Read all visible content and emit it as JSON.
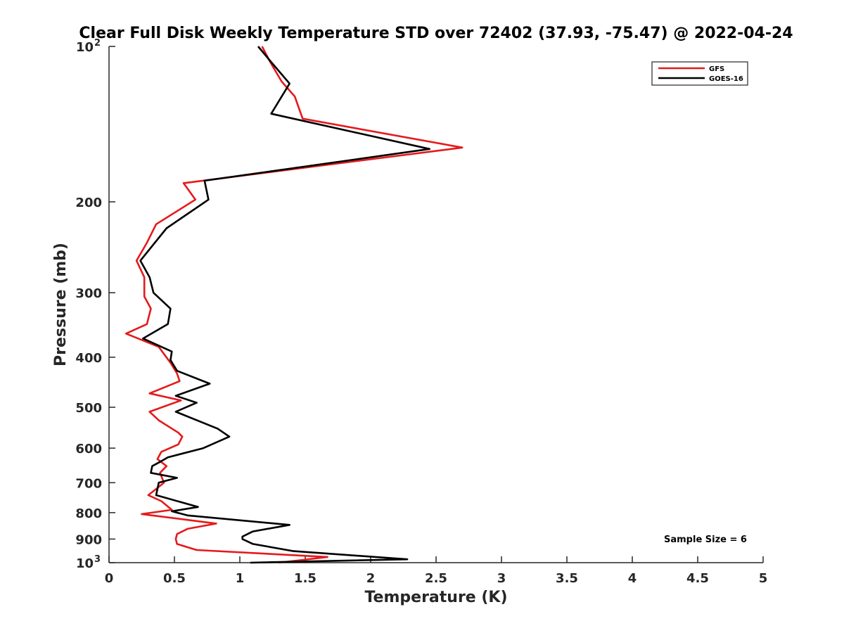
{
  "chart_data": {
    "type": "line",
    "title": "Clear Full Disk Weekly Temperature STD over 72402 (37.93, -75.47) @ 2022-04-24",
    "xlabel": "Temperature (K)",
    "ylabel": "Pressure (mb)",
    "xlim": [
      0,
      5
    ],
    "ylim": [
      100,
      1000
    ],
    "y_scale": "log",
    "y_reversed": true,
    "grid": false,
    "legend_position": "top-right",
    "x_ticks": [
      0,
      0.5,
      1,
      1.5,
      2,
      2.5,
      3,
      3.5,
      4,
      4.5,
      5
    ],
    "x_tick_labels": [
      "0",
      "0.5",
      "1",
      "1.5",
      "2",
      "2.5",
      "3",
      "3.5",
      "4",
      "4.5",
      "5"
    ],
    "y_ticks": [
      {
        "value": 100,
        "base": "10",
        "exp": "2",
        "label": ""
      },
      {
        "value": 200,
        "base": "",
        "exp": "",
        "label": "200"
      },
      {
        "value": 300,
        "base": "",
        "exp": "",
        "label": "300"
      },
      {
        "value": 400,
        "base": "",
        "exp": "",
        "label": "400"
      },
      {
        "value": 500,
        "base": "",
        "exp": "",
        "label": "500"
      },
      {
        "value": 600,
        "base": "",
        "exp": "",
        "label": "600"
      },
      {
        "value": 700,
        "base": "",
        "exp": "",
        "label": "700"
      },
      {
        "value": 800,
        "base": "",
        "exp": "",
        "label": "800"
      },
      {
        "value": 900,
        "base": "",
        "exp": "",
        "label": "900"
      },
      {
        "value": 1000,
        "base": "10",
        "exp": "3",
        "label": ""
      }
    ],
    "annotation": "Sample Size = 6",
    "series": [
      {
        "name": "GFS",
        "color": "#e41a1c",
        "points": [
          [
            1.17,
            100
          ],
          [
            1.23,
            107
          ],
          [
            1.32,
            117
          ],
          [
            1.42,
            125
          ],
          [
            1.48,
            138
          ],
          [
            2.7,
            157
          ],
          [
            0.57,
            184
          ],
          [
            0.66,
            198
          ],
          [
            0.36,
            221
          ],
          [
            0.29,
            240
          ],
          [
            0.21,
            260
          ],
          [
            0.27,
            280
          ],
          [
            0.27,
            305
          ],
          [
            0.32,
            322
          ],
          [
            0.29,
            345
          ],
          [
            0.13,
            360
          ],
          [
            0.38,
            382
          ],
          [
            0.47,
            410
          ],
          [
            0.52,
            430
          ],
          [
            0.54,
            445
          ],
          [
            0.31,
            470
          ],
          [
            0.55,
            485
          ],
          [
            0.31,
            510
          ],
          [
            0.38,
            530
          ],
          [
            0.53,
            560
          ],
          [
            0.56,
            570
          ],
          [
            0.53,
            590
          ],
          [
            0.4,
            610
          ],
          [
            0.37,
            630
          ],
          [
            0.44,
            650
          ],
          [
            0.39,
            670
          ],
          [
            0.42,
            700
          ],
          [
            0.36,
            720
          ],
          [
            0.3,
            740
          ],
          [
            0.4,
            760
          ],
          [
            0.48,
            790
          ],
          [
            0.25,
            805
          ],
          [
            0.82,
            840
          ],
          [
            0.6,
            860
          ],
          [
            0.52,
            880
          ],
          [
            0.51,
            900
          ],
          [
            0.52,
            920
          ],
          [
            0.67,
            945
          ],
          [
            1.67,
            975
          ],
          [
            1.3,
            1000
          ]
        ]
      },
      {
        "name": "GOES-16",
        "color": "#000000",
        "points": [
          [
            1.14,
            100
          ],
          [
            1.25,
            108
          ],
          [
            1.38,
            118
          ],
          [
            1.24,
            135
          ],
          [
            2.45,
            158
          ],
          [
            0.73,
            182
          ],
          [
            0.76,
            198
          ],
          [
            0.44,
            225
          ],
          [
            0.24,
            260
          ],
          [
            0.31,
            280
          ],
          [
            0.34,
            300
          ],
          [
            0.47,
            322
          ],
          [
            0.45,
            345
          ],
          [
            0.26,
            368
          ],
          [
            0.48,
            390
          ],
          [
            0.47,
            405
          ],
          [
            0.52,
            425
          ],
          [
            0.77,
            450
          ],
          [
            0.51,
            475
          ],
          [
            0.67,
            490
          ],
          [
            0.51,
            510
          ],
          [
            0.83,
            550
          ],
          [
            0.92,
            570
          ],
          [
            0.72,
            600
          ],
          [
            0.45,
            625
          ],
          [
            0.38,
            640
          ],
          [
            0.33,
            650
          ],
          [
            0.32,
            670
          ],
          [
            0.52,
            685
          ],
          [
            0.38,
            700
          ],
          [
            0.36,
            740
          ],
          [
            0.68,
            780
          ],
          [
            0.48,
            795
          ],
          [
            0.6,
            810
          ],
          [
            1.38,
            845
          ],
          [
            1.1,
            870
          ],
          [
            1.02,
            890
          ],
          [
            1.02,
            900
          ],
          [
            1.1,
            920
          ],
          [
            1.41,
            950
          ],
          [
            2.28,
            985
          ],
          [
            1.08,
            1000
          ]
        ]
      }
    ]
  }
}
